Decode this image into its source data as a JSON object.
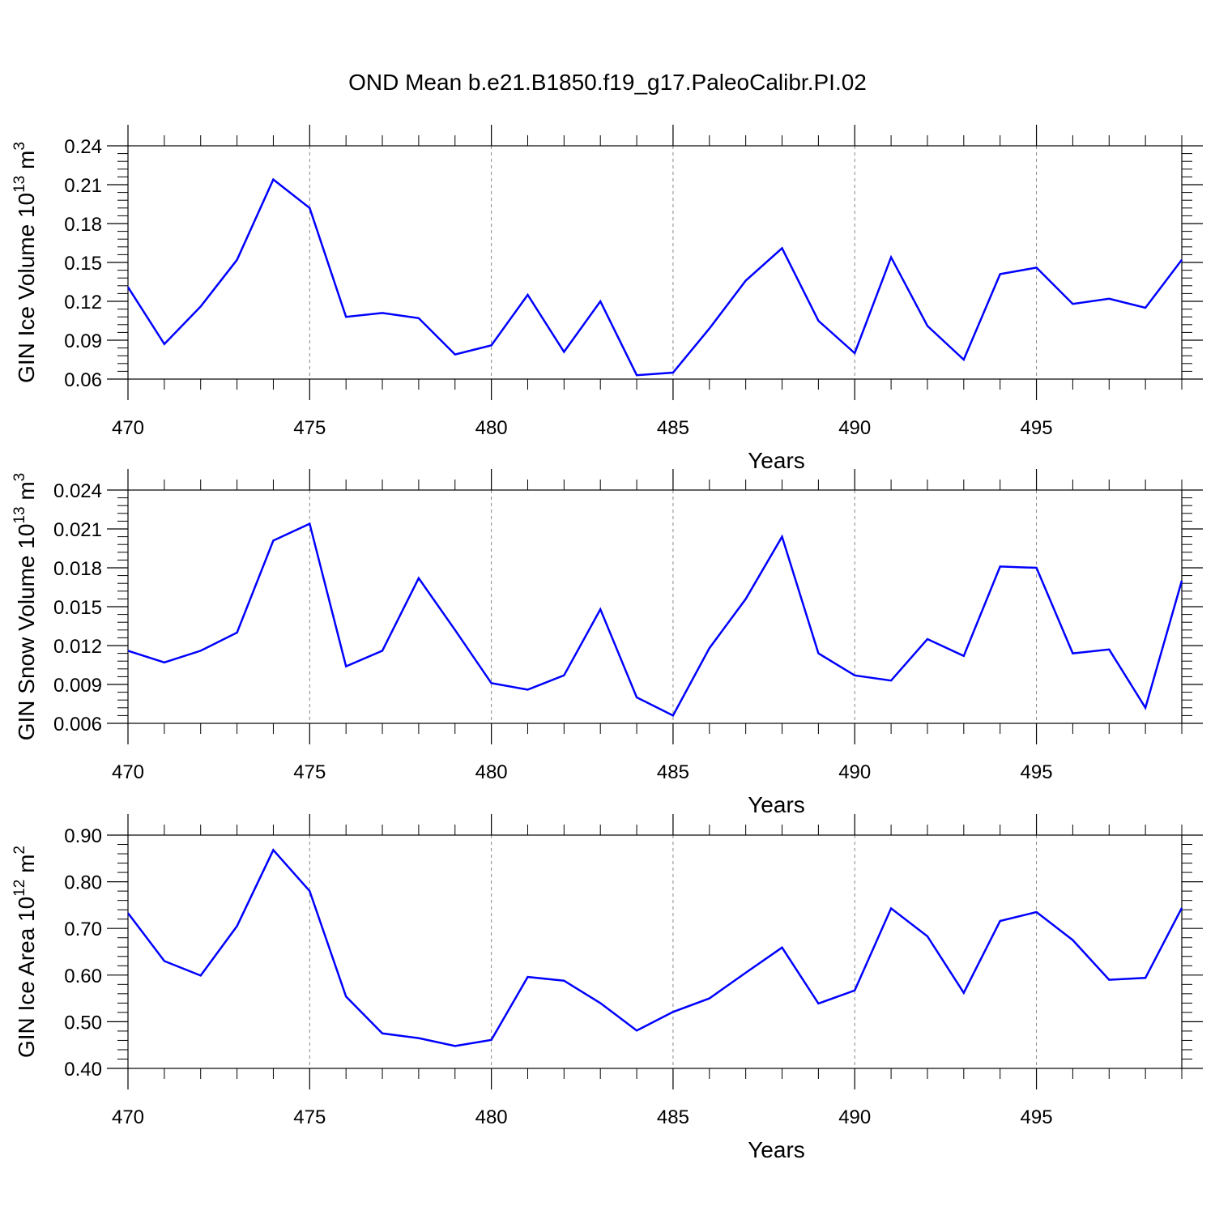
{
  "title": "OND Mean b.e21.B1850.f19_g17.PaleoCalibr.PI.02",
  "colors": {
    "series": "#0000ff",
    "axis": "#000000",
    "grid": "#888888"
  },
  "chart_data": [
    {
      "type": "line",
      "ylabel": {
        "text": "GIN Ice Volume 10",
        "sup1": "13",
        "mid": " m",
        "sup2": "3"
      },
      "xlabel": "Years",
      "xlim": [
        470,
        499
      ],
      "ylim": [
        0.06,
        0.24
      ],
      "xticks": [
        "470",
        "475",
        "480",
        "485",
        "490",
        "495"
      ],
      "yticks": [
        "0.06",
        "0.09",
        "0.12",
        "0.15",
        "0.18",
        "0.21",
        "0.24"
      ],
      "grid": "x-dashed",
      "x": [
        470,
        471,
        472,
        473,
        474,
        475,
        476,
        477,
        478,
        479,
        480,
        481,
        482,
        483,
        484,
        485,
        486,
        487,
        488,
        489,
        490,
        491,
        492,
        493,
        494,
        495,
        496,
        497,
        498,
        499
      ],
      "values": [
        0.131,
        0.087,
        0.116,
        0.152,
        0.214,
        0.192,
        0.108,
        0.111,
        0.107,
        0.079,
        0.086,
        0.125,
        0.081,
        0.12,
        0.063,
        0.065,
        0.099,
        0.136,
        0.161,
        0.105,
        0.08,
        0.154,
        0.101,
        0.075,
        0.141,
        0.146,
        0.118,
        0.122,
        0.115,
        0.152
      ]
    },
    {
      "type": "line",
      "ylabel": {
        "text": "GIN Snow Volume 10",
        "sup1": "13",
        "mid": " m",
        "sup2": "3"
      },
      "xlabel": "Years",
      "xlim": [
        470,
        499
      ],
      "ylim": [
        0.006,
        0.024
      ],
      "xticks": [
        "470",
        "475",
        "480",
        "485",
        "490",
        "495"
      ],
      "yticks": [
        "0.006",
        "0.009",
        "0.012",
        "0.015",
        "0.018",
        "0.021",
        "0.024"
      ],
      "grid": "x-dashed",
      "x": [
        470,
        471,
        472,
        473,
        474,
        475,
        476,
        477,
        478,
        479,
        480,
        481,
        482,
        483,
        484,
        485,
        486,
        487,
        488,
        489,
        490,
        491,
        492,
        493,
        494,
        495,
        496,
        497,
        498,
        499
      ],
      "values": [
        0.0116,
        0.0107,
        0.0116,
        0.013,
        0.0201,
        0.0214,
        0.0104,
        0.0116,
        0.0172,
        0.0132,
        0.0091,
        0.0086,
        0.0097,
        0.0148,
        0.008,
        0.0066,
        0.0118,
        0.0156,
        0.0204,
        0.0114,
        0.0097,
        0.0093,
        0.0125,
        0.0112,
        0.0181,
        0.018,
        0.0114,
        0.0117,
        0.0072,
        0.017
      ]
    },
    {
      "type": "line",
      "ylabel": {
        "text": "GIN Ice Area 10",
        "sup1": "12",
        "mid": " m",
        "sup2": "2"
      },
      "xlabel": "Years",
      "xlim": [
        470,
        499
      ],
      "ylim": [
        0.4,
        0.9
      ],
      "xticks": [
        "470",
        "475",
        "480",
        "485",
        "490",
        "495"
      ],
      "yticks": [
        "0.40",
        "0.50",
        "0.60",
        "0.70",
        "0.80",
        "0.90"
      ],
      "grid": "x-dashed",
      "x": [
        470,
        471,
        472,
        473,
        474,
        475,
        476,
        477,
        478,
        479,
        480,
        481,
        482,
        483,
        484,
        485,
        486,
        487,
        488,
        489,
        490,
        491,
        492,
        493,
        494,
        495,
        496,
        497,
        498,
        499
      ],
      "values": [
        0.733,
        0.63,
        0.599,
        0.705,
        0.868,
        0.78,
        0.554,
        0.475,
        0.465,
        0.448,
        0.461,
        0.596,
        0.588,
        0.54,
        0.481,
        0.521,
        0.55,
        0.605,
        0.659,
        0.539,
        0.567,
        0.743,
        0.683,
        0.562,
        0.716,
        0.735,
        0.675,
        0.59,
        0.594,
        0.744
      ]
    }
  ]
}
